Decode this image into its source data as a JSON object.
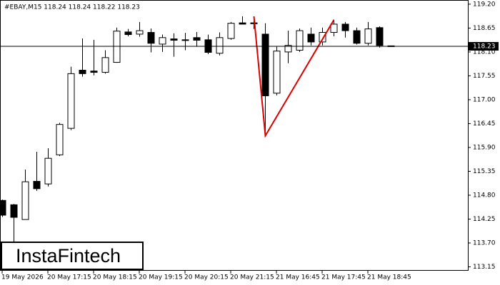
{
  "chart_data": {
    "type": "candlestick",
    "title": "#EBAY,M15  118.24 118.24 118.22 118.23",
    "logo": "InstaFintech",
    "categories": [
      "19 May 2026",
      null,
      null,
      null,
      "20 May 17:15",
      null,
      null,
      null,
      "20 May 18:15",
      null,
      null,
      null,
      "20 May 19:15",
      null,
      null,
      null,
      "20 May 20:15",
      null,
      null,
      null,
      "20 May 21:15",
      null,
      null,
      null,
      "21 May 16:45",
      null,
      null,
      null,
      "21 May 17:45",
      null,
      null,
      null,
      "21 May 18:45",
      null,
      null
    ],
    "open": [
      114.68,
      114.58,
      114.24,
      115.12,
      115.06,
      115.73,
      116.34,
      117.68,
      117.66,
      117.63,
      117.86,
      118.56,
      118.51,
      118.55,
      118.28,
      118.4,
      118.38,
      118.43,
      118.38,
      118.07,
      118.41,
      118.77,
      118.77,
      118.51,
      117.15,
      118.1,
      118.14,
      118.51,
      118.33,
      118.55,
      118.74,
      118.59,
      118.3,
      118.66,
      118.24
    ],
    "high": [
      114.7,
      114.6,
      115.39,
      115.8,
      115.88,
      116.47,
      117.76,
      118.41,
      118.38,
      118.14,
      118.66,
      118.63,
      118.79,
      118.64,
      118.5,
      118.53,
      118.54,
      118.56,
      118.5,
      118.55,
      118.79,
      118.92,
      118.87,
      118.76,
      118.22,
      118.59,
      118.64,
      118.66,
      118.66,
      118.84,
      118.79,
      118.66,
      118.79,
      118.69,
      118.24
    ],
    "low": [
      114.3,
      113.72,
      114.24,
      114.9,
      115.0,
      115.7,
      116.3,
      117.53,
      117.56,
      117.6,
      117.85,
      118.46,
      118.45,
      118.09,
      118.1,
      117.99,
      118.14,
      118.22,
      118.05,
      118.02,
      118.38,
      118.74,
      118.63,
      116.17,
      117.1,
      117.84,
      118.1,
      118.25,
      118.25,
      118.46,
      118.43,
      118.27,
      118.25,
      118.2,
      118.22
    ],
    "close": [
      114.34,
      114.29,
      115.11,
      114.95,
      115.65,
      116.43,
      117.6,
      117.6,
      117.63,
      117.97,
      118.58,
      118.5,
      118.59,
      118.3,
      118.43,
      118.37,
      118.38,
      118.37,
      118.09,
      118.43,
      118.76,
      118.74,
      118.75,
      117.09,
      118.12,
      118.25,
      118.59,
      118.33,
      118.55,
      118.74,
      118.59,
      118.3,
      118.63,
      118.25,
      118.23
    ],
    "up_color": "#ffffff",
    "down_color": "#000000",
    "ylim": [
      113.06,
      119.28
    ],
    "yticks": [
      {
        "value": 119.2,
        "label": "119.20"
      },
      {
        "value": 118.65,
        "label": "118.65"
      },
      {
        "value": 118.1,
        "label": "118.10"
      },
      {
        "value": 117.55,
        "label": "117.55"
      },
      {
        "value": 117.0,
        "label": "117.00"
      },
      {
        "value": 116.45,
        "label": "116.45"
      },
      {
        "value": 115.9,
        "label": "115.90"
      },
      {
        "value": 115.35,
        "label": "115.35"
      },
      {
        "value": 114.8,
        "label": "114.80"
      },
      {
        "value": 114.25,
        "label": "114.25"
      },
      {
        "value": 113.7,
        "label": "113.70"
      },
      {
        "value": 113.15,
        "label": "113.15"
      }
    ],
    "current_price": 118.23,
    "pattern_line": {
      "color": "#e00000",
      "points": [
        {
          "index": 22,
          "value": 118.92
        },
        {
          "index": 23,
          "value": 116.17
        },
        {
          "index": 29,
          "value": 118.84
        }
      ]
    }
  }
}
